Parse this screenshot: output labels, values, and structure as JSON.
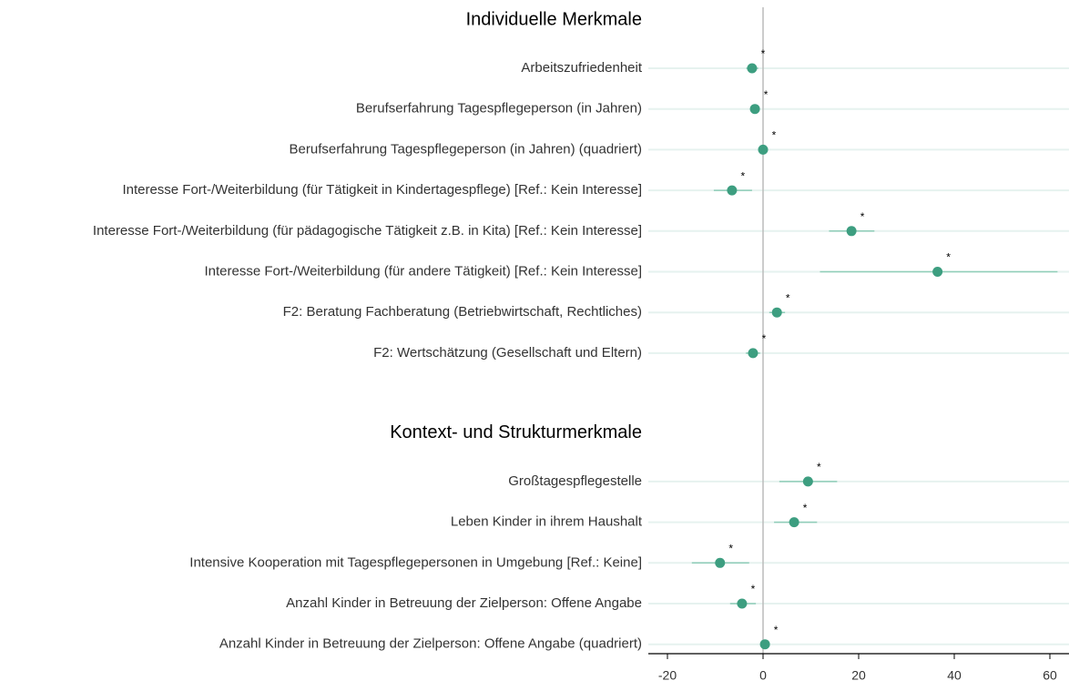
{
  "chart_data": {
    "type": "forest",
    "color": "#3d9e80",
    "ci_color": "#8fcdb8",
    "xlim": [
      -24,
      64
    ],
    "xticks": [
      -20,
      0,
      20,
      40,
      60
    ],
    "groups": [
      {
        "title": "Individuelle Merkmale",
        "categories": [
          "Arbeitszufriedenheit",
          "Berufserfahrung Tagespflegeperson (in Jahren)",
          "Berufserfahrung Tagespflegeperson (in Jahren) (quadriert)",
          "Interesse Fort-/Weiterbildung (für Tätigkeit in Kindertagespflege) [Ref.: Kein Interesse]",
          "Interesse Fort-/Weiterbildung (für pädagogische Tätigkeit z.B. in Kita) [Ref.: Kein Interesse]",
          "Interesse Fort-/Weiterbildung (für andere Tätigkeit) [Ref.: Kein Interesse]",
          "F2: Beratung Fachberatung (Betriebwirtschaft, Rechtliches)",
          "F2: Wertschätzung (Gesellschaft und Eltern)"
        ],
        "values": [
          -2.3,
          -1.7,
          0,
          -6.5,
          18.5,
          36.5,
          2.9,
          -2.1
        ],
        "ci_low": [
          -3.5,
          -2.5,
          -0.3,
          -10.3,
          13.8,
          11.9,
          1.3,
          -3.6
        ],
        "ci_high": [
          -1,
          -0.9,
          0.3,
          -2.3,
          23.3,
          61.6,
          4.6,
          -0.6
        ],
        "significance": [
          "*",
          "*",
          "*",
          "*",
          "*",
          "*",
          "*",
          "*"
        ]
      },
      {
        "title": "Kontext- und Strukturmerkmale",
        "categories": [
          "Großtagespflegestelle",
          "Leben Kinder in ihrem Haushalt",
          "Intensive Kooperation mit Tagespflegepersonen in Umgebung [Ref.: Keine]",
          "Anzahl Kinder in Betreuung der Zielperson: Offene Angabe",
          "Anzahl Kinder in Betreuung der Zielperson: Offene Angabe (quadriert)"
        ],
        "values": [
          9.4,
          6.5,
          -9,
          -4.4,
          0.4
        ],
        "ci_low": [
          3.4,
          2.3,
          -14.9,
          -6.9,
          0
        ],
        "ci_high": [
          15.5,
          11.3,
          -2.9,
          -1.5,
          0.8
        ],
        "significance": [
          "*",
          "*",
          "*",
          "*",
          "*"
        ]
      }
    ]
  }
}
